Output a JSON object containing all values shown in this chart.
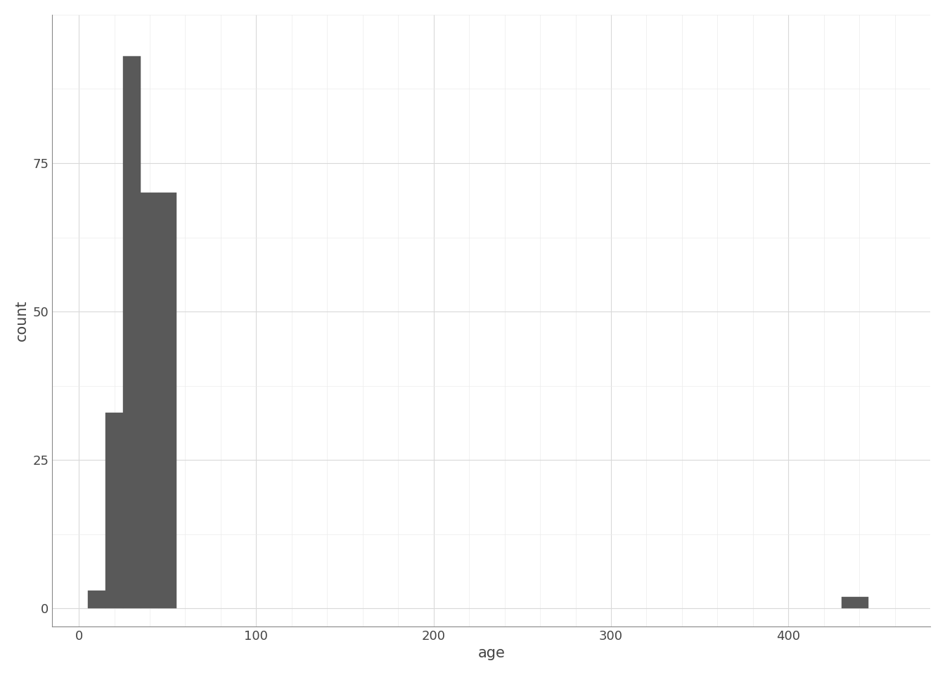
{
  "title": "",
  "xlabel": "age",
  "ylabel": "count",
  "bar_color": "#595959",
  "bar_edgecolor": "#595959",
  "background_color": "#ffffff",
  "panel_background": "#ffffff",
  "grid_color": "#d9d9d9",
  "axis_color": "#444444",
  "text_color": "#444444",
  "xlim": [
    -15,
    480
  ],
  "ylim": [
    -3,
    100
  ],
  "xticks": [
    0,
    100,
    200,
    300,
    400
  ],
  "yticks": [
    0,
    25,
    50,
    75
  ],
  "bins_left": [
    5,
    15,
    25,
    35,
    45,
    430
  ],
  "bins_right": [
    15,
    25,
    35,
    45,
    55,
    445
  ],
  "counts": [
    3,
    33,
    93,
    70,
    70,
    2
  ],
  "xlabel_fontsize": 15,
  "ylabel_fontsize": 15,
  "tick_fontsize": 13
}
